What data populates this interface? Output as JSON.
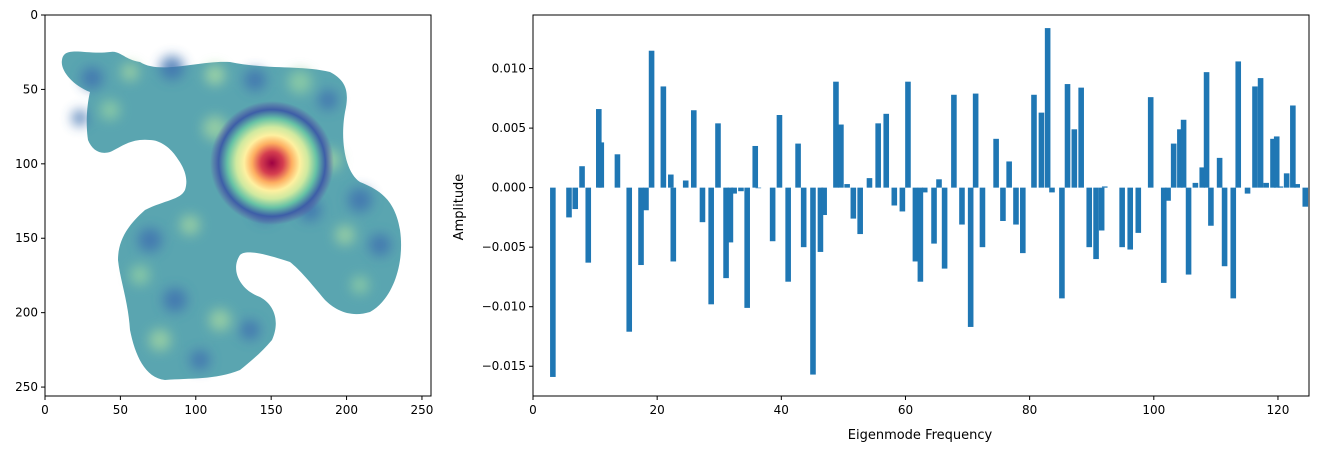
{
  "chart_data": [
    {
      "type": "heatmap",
      "description_role": "image",
      "xlim": [
        0,
        256
      ],
      "ylim": [
        256,
        0
      ],
      "xticks": [
        0,
        50,
        100,
        150,
        200,
        250
      ],
      "yticks": [
        0,
        50,
        100,
        150,
        200,
        250
      ],
      "xtick_labels": [
        "0",
        "50",
        "100",
        "150",
        "200",
        "250"
      ],
      "ytick_labels": [
        "0",
        "50",
        "100",
        "150",
        "200",
        "250"
      ],
      "peak": {
        "x": 150,
        "y": 100
      },
      "colormap": "Spectral_r",
      "colors": {
        "low": "#3d5ea7",
        "mid": "#9fd4a3",
        "mid2": "#e8f59a",
        "high": "#fdae61",
        "peak": "#9e0142",
        "edge": "#5aa5b0"
      }
    },
    {
      "type": "bar",
      "xlabel": "Eigenmode Frequency",
      "ylabel": "Amplitude",
      "xlim": [
        0,
        125
      ],
      "ylim": [
        -0.0175,
        0.0145
      ],
      "xticks": [
        0,
        20,
        40,
        60,
        80,
        100,
        120
      ],
      "xtick_labels": [
        "0",
        "20",
        "40",
        "60",
        "80",
        "100",
        "120"
      ],
      "yticks": [
        -0.015,
        -0.01,
        -0.005,
        0.0,
        0.005,
        0.01
      ],
      "ytick_labels": [
        "−0.015",
        "−0.010",
        "−0.005",
        "0.000",
        "0.005",
        "0.010"
      ],
      "bar_color": "#1f77b4",
      "x": [
        3.2,
        5.8,
        6.8,
        7.9,
        8.9,
        10.6,
        11,
        13.6,
        15.5,
        17.4,
        18.2,
        19.1,
        21,
        22.2,
        22.6,
        24.6,
        25.9,
        27.3,
        28.7,
        29.8,
        31.1,
        31.8,
        32.4,
        33.5,
        34.5,
        35.8,
        36.3,
        38.6,
        39.7,
        41.1,
        42.7,
        43.6,
        45.1,
        46.3,
        46.9,
        48.8,
        49.6,
        50.6,
        51.6,
        52.7,
        54.2,
        55.6,
        56.9,
        58.2,
        59.5,
        60.4,
        61.6,
        62.4,
        63.1,
        64.6,
        65.4,
        66.3,
        67.8,
        69.1,
        70.5,
        71.3,
        72.4,
        74.6,
        75.7,
        76.7,
        77.8,
        78.9,
        80.7,
        81.9,
        82.9,
        83.6,
        85.2,
        86.1,
        87.2,
        88.3,
        89.6,
        90.7,
        91.6,
        92.1,
        94.9,
        96.2,
        97.5,
        99.5,
        101.6,
        102.3,
        103.2,
        104.2,
        104.8,
        105.6,
        106.7,
        107.8,
        108.5,
        109.2,
        110.6,
        111.4,
        112.8,
        113.6,
        115.1,
        116.3,
        117.2,
        118.1,
        119.2,
        119.8,
        120.4,
        121.4,
        122.4,
        123.1,
        124.4
      ],
      "values": [
        -0.0159,
        -0.0025,
        -0.0018,
        0.0018,
        -0.0063,
        0.0066,
        0.0038,
        0.0028,
        -0.0121,
        -0.0065,
        -0.0019,
        0.0115,
        0.0085,
        0.0011,
        -0.0062,
        0.0006,
        0.0065,
        -0.0029,
        -0.0098,
        0.0054,
        -0.0076,
        -0.0046,
        -0.0005,
        -0.0003,
        -0.0101,
        0.0035,
        0.0,
        -0.0045,
        0.0061,
        -0.0079,
        0.0037,
        -0.005,
        -0.0157,
        -0.0054,
        -0.0023,
        0.0089,
        0.0053,
        0.0003,
        -0.0026,
        -0.0039,
        0.0008,
        0.0054,
        0.0062,
        -0.0015,
        -0.002,
        0.0089,
        -0.0062,
        -0.0079,
        -0.0004,
        -0.0047,
        0.0007,
        -0.0068,
        0.0078,
        -0.0031,
        -0.0117,
        0.0079,
        -0.005,
        0.0041,
        -0.0028,
        0.0022,
        -0.0031,
        -0.0055,
        0.0078,
        0.0063,
        0.0134,
        -0.0004,
        -0.0093,
        0.0087,
        0.0049,
        0.0084,
        -0.005,
        -0.006,
        -0.0036,
        0.0001,
        -0.005,
        -0.0052,
        -0.0038,
        0.0076,
        -0.008,
        -0.0011,
        0.0037,
        0.0049,
        0.0057,
        -0.0073,
        0.0004,
        0.0017,
        0.0097,
        -0.0032,
        0.0025,
        -0.0066,
        -0.0093,
        0.0106,
        -0.0005,
        0.0085,
        0.0092,
        0.0004,
        0.0041,
        0.0043,
        0.0001,
        0.0012,
        0.0069,
        0.0003,
        -0.0016
      ]
    }
  ]
}
